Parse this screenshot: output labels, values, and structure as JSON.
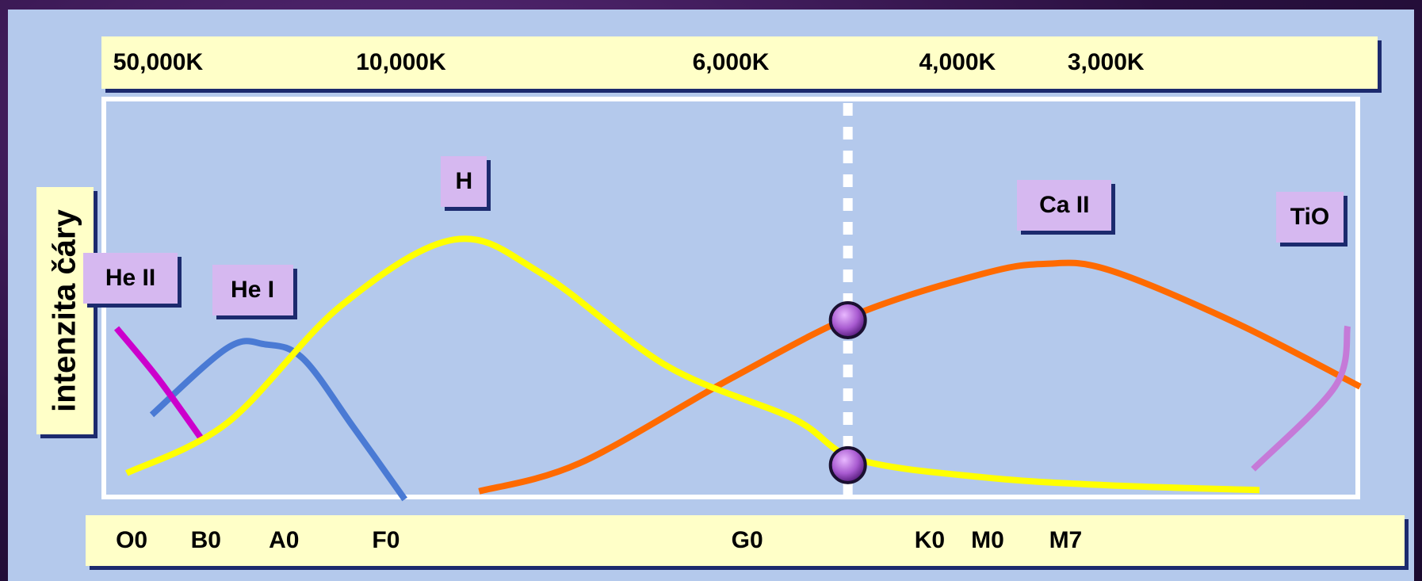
{
  "chart_data": {
    "type": "line",
    "ylabel": "intenzita čáry",
    "temperature_ticks": [
      {
        "label": "50,000K",
        "pos": 0.045
      },
      {
        "label": "10,000K",
        "pos": 0.238
      },
      {
        "label": "6,000K",
        "pos": 0.5
      },
      {
        "label": "4,000K",
        "pos": 0.68
      },
      {
        "label": "3,000K",
        "pos": 0.798
      }
    ],
    "spectral_ticks": [
      {
        "label": "O0",
        "pos": 0.024
      },
      {
        "label": "B0",
        "pos": 0.083
      },
      {
        "label": "A0",
        "pos": 0.145
      },
      {
        "label": "F0",
        "pos": 0.226
      },
      {
        "label": "G0",
        "pos": 0.513
      },
      {
        "label": "K0",
        "pos": 0.658
      },
      {
        "label": "M0",
        "pos": 0.704
      },
      {
        "label": "M7",
        "pos": 0.766
      }
    ],
    "x_range": [
      0,
      1
    ],
    "y_range": [
      0,
      1
    ],
    "series": [
      {
        "name": "He II",
        "color": "#cc00cc",
        "points": [
          [
            0.012,
            0.425
          ],
          [
            0.045,
            0.3
          ],
          [
            0.08,
            0.148
          ]
        ]
      },
      {
        "name": "He I",
        "color": "#4a7ad4",
        "points": [
          [
            0.04,
            0.21
          ],
          [
            0.1,
            0.376
          ],
          [
            0.13,
            0.385
          ],
          [
            0.16,
            0.35
          ],
          [
            0.2,
            0.18
          ],
          [
            0.241,
            0.0
          ]
        ]
      },
      {
        "name": "H",
        "color": "#ffff00",
        "points": [
          [
            0.02,
            0.065
          ],
          [
            0.1,
            0.19
          ],
          [
            0.19,
            0.48
          ],
          [
            0.28,
            0.645
          ],
          [
            0.35,
            0.56
          ],
          [
            0.45,
            0.33
          ],
          [
            0.55,
            0.2
          ],
          [
            0.6,
            0.1
          ],
          [
            0.7,
            0.055
          ],
          [
            0.8,
            0.035
          ],
          [
            0.92,
            0.023
          ]
        ]
      },
      {
        "name": "Ca II",
        "color": "#ff6a00",
        "points": [
          [
            0.3,
            0.02
          ],
          [
            0.38,
            0.09
          ],
          [
            0.5,
            0.3
          ],
          [
            0.6,
            0.46
          ],
          [
            0.7,
            0.56
          ],
          [
            0.75,
            0.585
          ],
          [
            0.8,
            0.57
          ],
          [
            0.9,
            0.44
          ],
          [
            1.0,
            0.28
          ]
        ]
      },
      {
        "name": "TiO",
        "color": "#c57ad8",
        "points": [
          [
            0.915,
            0.075
          ],
          [
            0.98,
            0.28
          ],
          [
            0.99,
            0.43
          ]
        ]
      }
    ],
    "markers": [
      {
        "x": 0.593,
        "y": 0.445,
        "color": "#a85ad0"
      },
      {
        "x": 0.593,
        "y": 0.085,
        "color": "#a85ad0"
      }
    ],
    "divider_x": 0.593,
    "line_labels": [
      {
        "name": "He II",
        "anchor_x": 0.023,
        "anchor_y": 0.55
      },
      {
        "name": "He I",
        "anchor_x": 0.12,
        "anchor_y": 0.52
      },
      {
        "name": "H",
        "anchor_x": 0.288,
        "anchor_y": 0.79
      },
      {
        "name": "Ca II",
        "anchor_x": 0.765,
        "anchor_y": 0.73
      },
      {
        "name": "TiO",
        "anchor_x": 0.96,
        "anchor_y": 0.7
      }
    ],
    "grid": false,
    "legend": "none"
  }
}
